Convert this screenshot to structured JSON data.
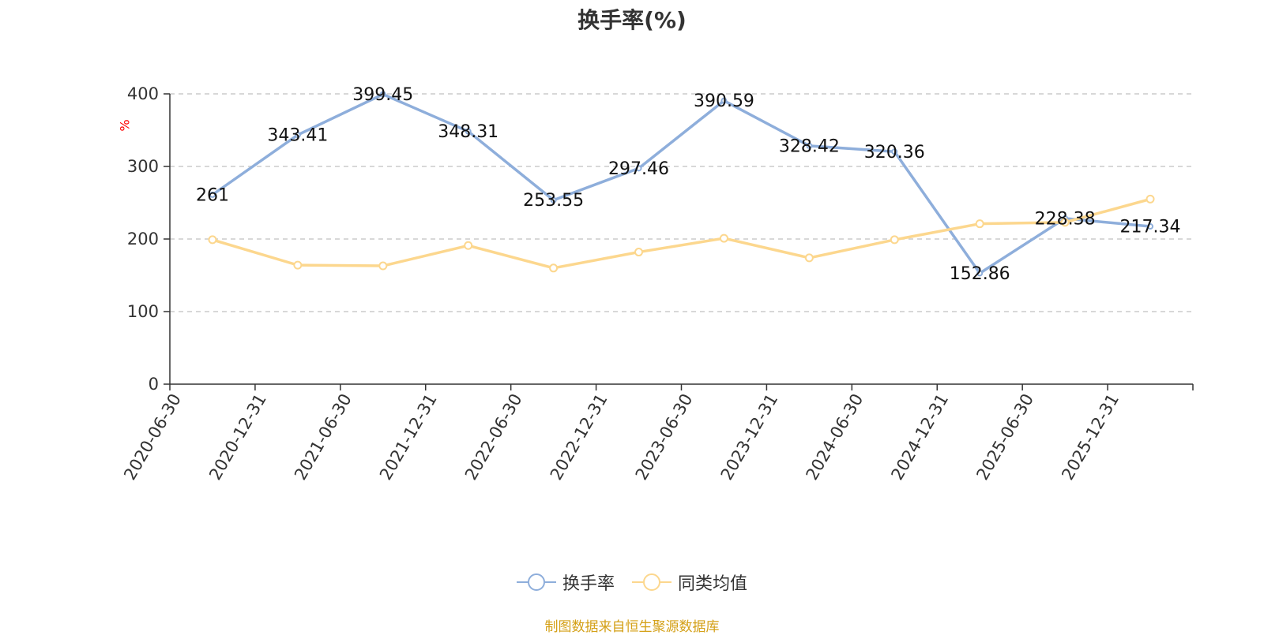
{
  "colors": {
    "series1": "#8eaedb",
    "series2": "#fcd78e",
    "axis": "#333333",
    "grid": "#cccccc",
    "unit": "#ff0000",
    "source": "#d4a017"
  },
  "source_note": "制图数据来自恒生聚源数据库",
  "chart_data": {
    "type": "line",
    "title": "换手率(%)",
    "ylabel": "%",
    "ylim": [
      0,
      400
    ],
    "yticks": [
      0,
      100,
      200,
      300,
      400
    ],
    "grid": true,
    "legend_position": "bottom",
    "categories": [
      "2020-06-30",
      "2020-12-31",
      "2021-06-30",
      "2021-12-31",
      "2022-06-30",
      "2022-12-31",
      "2023-06-30",
      "2023-12-31",
      "2024-06-30",
      "2024-12-31",
      "2025-06-30",
      "2025-12-31"
    ],
    "series": [
      {
        "name": "换手率",
        "values": [
          261,
          343.41,
          399.45,
          348.31,
          253.55,
          297.46,
          390.59,
          328.42,
          320.36,
          152.86,
          228.38,
          217.34
        ],
        "labels": [
          "261",
          "343.41",
          "399.45",
          "348.31",
          "253.55",
          "297.46",
          "390.59",
          "328.42",
          "320.36",
          "152.86",
          "228.38",
          "217.34"
        ],
        "color": "#8eaedb"
      },
      {
        "name": "同类均值",
        "values": [
          199,
          164,
          163,
          191,
          160,
          182,
          201,
          174,
          199,
          221,
          223,
          255
        ],
        "color": "#fcd78e"
      }
    ]
  }
}
